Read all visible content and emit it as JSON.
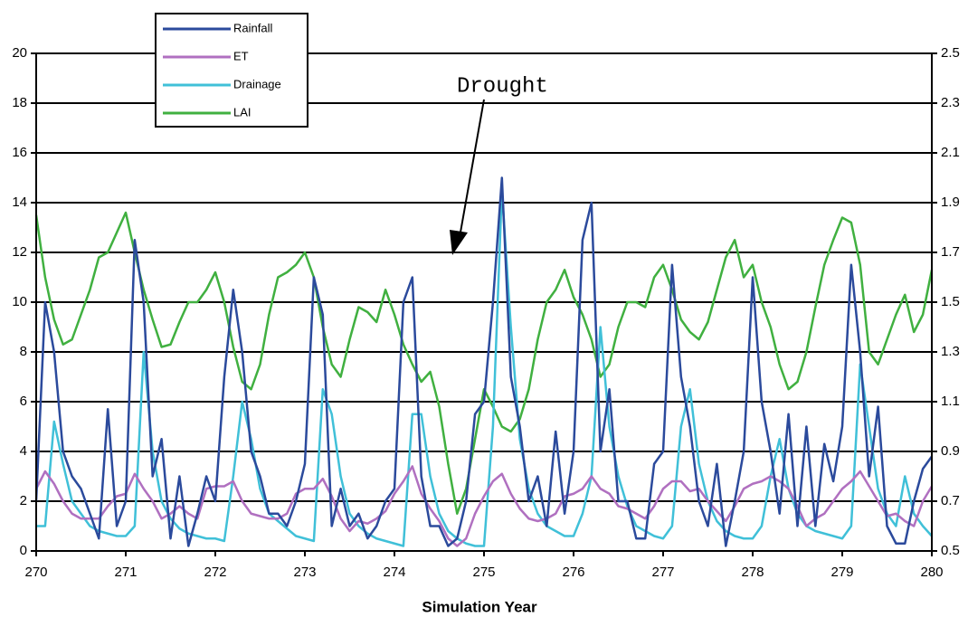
{
  "chart_data": {
    "type": "line",
    "x_label": "Simulation Year",
    "annotation": "Drought",
    "x": [
      270,
      270.1,
      270.2,
      270.3,
      270.4,
      270.5,
      270.6,
      270.7,
      270.8,
      270.9,
      271,
      271.1,
      271.2,
      271.3,
      271.4,
      271.5,
      271.6,
      271.7,
      271.8,
      271.9,
      272,
      272.1,
      272.2,
      272.3,
      272.4,
      272.5,
      272.6,
      272.7,
      272.8,
      272.9,
      273,
      273.1,
      273.2,
      273.3,
      273.4,
      273.5,
      273.6,
      273.7,
      273.8,
      273.9,
      274,
      274.1,
      274.2,
      274.3,
      274.4,
      274.5,
      274.6,
      274.7,
      274.8,
      274.9,
      275,
      275.1,
      275.2,
      275.3,
      275.4,
      275.5,
      275.6,
      275.7,
      275.8,
      275.9,
      276,
      276.1,
      276.2,
      276.3,
      276.4,
      276.5,
      276.6,
      276.7,
      276.8,
      276.9,
      277,
      277.1,
      277.2,
      277.3,
      277.4,
      277.5,
      277.6,
      277.7,
      277.8,
      277.9,
      278,
      278.1,
      278.2,
      278.3,
      278.4,
      278.5,
      278.6,
      278.7,
      278.8,
      278.9,
      279,
      279.1,
      279.2,
      279.3,
      279.4,
      279.5,
      279.6,
      279.7,
      279.8,
      279.9,
      280
    ],
    "series": [
      {
        "name": "Rainfall",
        "color": "#2b4a9c",
        "values": [
          2,
          10,
          8,
          4,
          3,
          2.5,
          1.5,
          0.5,
          5.7,
          1,
          2,
          12.5,
          10,
          3,
          4.5,
          0.5,
          3,
          0.2,
          1.5,
          3,
          2,
          7,
          10.5,
          8,
          4,
          3,
          1.5,
          1.5,
          1,
          2,
          3.5,
          11,
          9.5,
          1,
          2.5,
          1,
          1.5,
          0.5,
          1,
          2,
          2.5,
          10,
          11,
          3,
          1,
          1,
          0.2,
          0.5,
          2,
          5.5,
          6,
          10,
          15,
          7,
          5,
          2,
          3,
          1,
          4.8,
          1.5,
          4,
          12.5,
          14,
          4,
          6.5,
          2,
          2,
          0.5,
          0.5,
          3.5,
          4,
          11.5,
          7,
          5,
          2,
          1,
          3.5,
          0.2,
          2,
          4,
          11,
          6,
          4,
          1.5,
          5.5,
          1,
          5,
          1,
          4.3,
          2.8,
          5,
          11.5,
          8,
          3,
          5.8,
          1,
          0.3,
          0.3,
          2,
          3.3,
          3.8
        ]
      },
      {
        "name": "ET",
        "color": "#b070c0",
        "values": [
          2.5,
          3.2,
          2.7,
          2,
          1.5,
          1.3,
          1.3,
          1.3,
          1.8,
          2.2,
          2.3,
          3.1,
          2.5,
          2,
          1.3,
          1.5,
          1.8,
          1.5,
          1.3,
          2.5,
          2.6,
          2.6,
          2.8,
          2,
          1.5,
          1.4,
          1.3,
          1.3,
          1.5,
          2.3,
          2.5,
          2.5,
          2.9,
          2.2,
          1.3,
          0.8,
          1.2,
          1.1,
          1.3,
          1.6,
          2.3,
          2.8,
          3.4,
          2.3,
          1.7,
          1.2,
          0.5,
          0.2,
          0.5,
          1.5,
          2.2,
          2.8,
          3.1,
          2.3,
          1.7,
          1.3,
          1.2,
          1.3,
          1.5,
          2.2,
          2.3,
          2.5,
          3,
          2.5,
          2.3,
          1.8,
          1.7,
          1.5,
          1.3,
          1.8,
          2.5,
          2.8,
          2.8,
          2.4,
          2.5,
          2,
          1.6,
          1.2,
          1.8,
          2.5,
          2.7,
          2.8,
          3,
          2.8,
          2.5,
          1.8,
          1,
          1.3,
          1.5,
          2,
          2.5,
          2.8,
          3.2,
          2.6,
          2,
          1.4,
          1.5,
          1.2,
          1,
          2,
          2.6
        ]
      },
      {
        "name": "Drainage",
        "color": "#40c0d8",
        "values": [
          1,
          1,
          5.2,
          3.5,
          2,
          1.5,
          1,
          0.8,
          0.7,
          0.6,
          0.6,
          1,
          8,
          4,
          2,
          1.3,
          0.9,
          0.7,
          0.6,
          0.5,
          0.5,
          0.4,
          3,
          6,
          4.5,
          2.5,
          1.5,
          1.2,
          0.9,
          0.6,
          0.5,
          0.4,
          6.5,
          5.5,
          3,
          1.5,
          1,
          0.7,
          0.5,
          0.4,
          0.3,
          0.2,
          5.5,
          5.5,
          3,
          1.5,
          0.8,
          0.5,
          0.3,
          0.2,
          0.2,
          5,
          14.5,
          9,
          4.5,
          2.5,
          1.5,
          1,
          0.8,
          0.6,
          0.6,
          1.5,
          3,
          9,
          5,
          3,
          1.8,
          1,
          0.8,
          0.6,
          0.5,
          1,
          5,
          6.5,
          3.5,
          2,
          1.2,
          0.8,
          0.6,
          0.5,
          0.5,
          1,
          3,
          4.5,
          2.5,
          1.5,
          1,
          0.8,
          0.7,
          0.6,
          0.5,
          1,
          7.5,
          5,
          2.5,
          1.5,
          1,
          3,
          1.5,
          1,
          0.6
        ]
      },
      {
        "name": "LAI",
        "color": "#40b040",
        "axis": "y2",
        "values": [
          1.85,
          1.6,
          1.43,
          1.33,
          1.35,
          1.45,
          1.55,
          1.68,
          1.7,
          1.78,
          1.86,
          1.7,
          1.55,
          1.43,
          1.32,
          1.33,
          1.42,
          1.5,
          1.5,
          1.55,
          1.62,
          1.5,
          1.32,
          1.18,
          1.15,
          1.25,
          1.45,
          1.6,
          1.62,
          1.65,
          1.7,
          1.6,
          1.4,
          1.25,
          1.2,
          1.35,
          1.48,
          1.46,
          1.42,
          1.55,
          1.45,
          1.33,
          1.25,
          1.18,
          1.22,
          1.08,
          0.85,
          0.65,
          0.75,
          0.95,
          1.15,
          1.08,
          1.0,
          0.98,
          1.03,
          1.15,
          1.35,
          1.5,
          1.55,
          1.63,
          1.52,
          1.45,
          1.35,
          1.2,
          1.25,
          1.4,
          1.5,
          1.5,
          1.48,
          1.6,
          1.65,
          1.55,
          1.43,
          1.38,
          1.35,
          1.42,
          1.55,
          1.68,
          1.75,
          1.6,
          1.65,
          1.5,
          1.4,
          1.25,
          1.15,
          1.18,
          1.3,
          1.48,
          1.65,
          1.75,
          1.84,
          1.82,
          1.65,
          1.3,
          1.25,
          1.35,
          1.45,
          1.53,
          1.38,
          1.45,
          1.63
        ]
      }
    ],
    "xlim": [
      270,
      280
    ],
    "xticks": [
      270,
      271,
      272,
      273,
      274,
      275,
      276,
      277,
      278,
      279,
      280
    ],
    "ylim": [
      0,
      20
    ],
    "yticks": [
      0,
      2,
      4,
      6,
      8,
      10,
      12,
      14,
      16,
      18,
      20
    ],
    "y2lim": [
      0.5,
      2.5
    ],
    "y2ticks": [
      0.5,
      0.7,
      0.9,
      1.1,
      1.3,
      1.5,
      1.7,
      1.9,
      2.1,
      2.3,
      2.5
    ],
    "grid": true
  }
}
